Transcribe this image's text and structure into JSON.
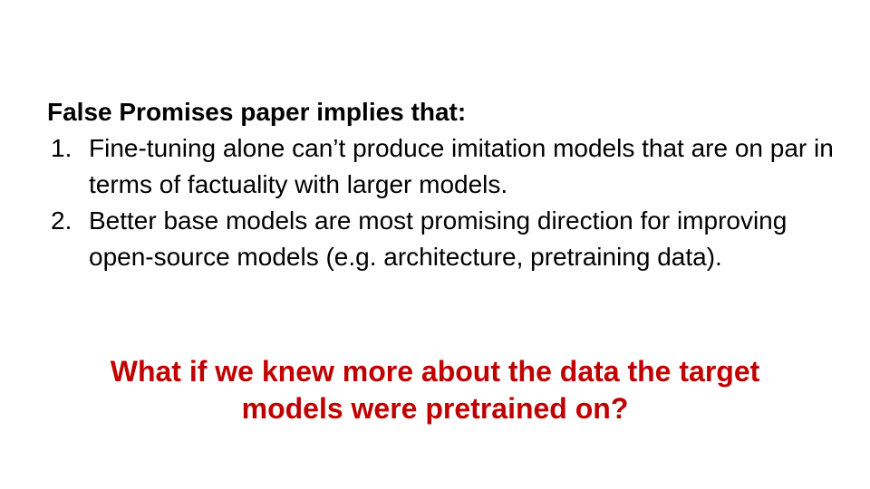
{
  "slide": {
    "heading": "False Promises paper implies that:",
    "points": [
      {
        "number": "1.",
        "text": "Fine-tuning alone can’t produce imitation models that are on par in terms of factuality with larger models."
      },
      {
        "number": "2.",
        "text": "Better base models are most promising direction for improving open-source models (e.g. architecture, pretraining data)."
      }
    ],
    "question_lines": [
      "What if we knew more about the data the target",
      "models were pretrained on?"
    ],
    "colors": {
      "question": "#c00000",
      "text": "#000000",
      "background": "#ffffff"
    }
  }
}
